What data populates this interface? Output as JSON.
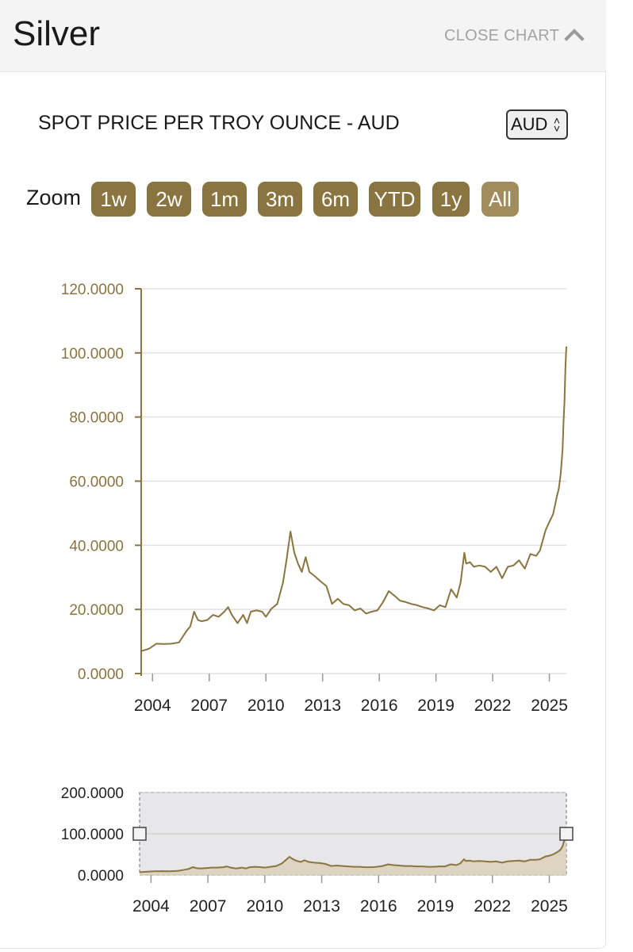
{
  "header": {
    "title": "Silver",
    "close_label": "CLOSE CHART"
  },
  "subtitle": "SPOT PRICE PER TROY OUNCE - AUD",
  "currency": {
    "selected": "AUD"
  },
  "zoom": {
    "label": "Zoom",
    "options": [
      "1w",
      "2w",
      "1m",
      "3m",
      "6m",
      "YTD",
      "1y",
      "All"
    ],
    "selected": "All"
  },
  "colors": {
    "line": "#8a7440",
    "axis_label": "#8a7440",
    "grid": "#e0e0e0"
  },
  "chart_data": {
    "type": "line",
    "title": "SPOT PRICE PER TROY OUNCE - AUD",
    "ylim": [
      0,
      120
    ],
    "yticks": [
      "0.0000",
      "20.0000",
      "40.0000",
      "60.0000",
      "80.0000",
      "100.0000",
      "120.0000"
    ],
    "xlim": [
      2003.4,
      2025.9
    ],
    "xticks": [
      "2004",
      "2007",
      "2010",
      "2013",
      "2016",
      "2019",
      "2022",
      "2025"
    ],
    "series": [
      {
        "name": "Silver AUD",
        "x": [
          2003.4,
          2003.8,
          2004.2,
          2004.6,
          2005.0,
          2005.4,
          2005.8,
          2006.0,
          2006.2,
          2006.4,
          2006.6,
          2006.9,
          2007.2,
          2007.5,
          2007.8,
          2008.0,
          2008.2,
          2008.5,
          2008.8,
          2009.0,
          2009.2,
          2009.5,
          2009.8,
          2010.0,
          2010.3,
          2010.6,
          2010.9,
          2011.1,
          2011.3,
          2011.5,
          2011.7,
          2011.9,
          2012.1,
          2012.3,
          2012.6,
          2012.9,
          2013.2,
          2013.5,
          2013.8,
          2014.1,
          2014.4,
          2014.7,
          2015.0,
          2015.3,
          2015.6,
          2015.9,
          2016.2,
          2016.5,
          2016.8,
          2017.1,
          2017.4,
          2017.7,
          2018.0,
          2018.3,
          2018.6,
          2018.9,
          2019.2,
          2019.5,
          2019.8,
          2020.1,
          2020.3,
          2020.5,
          2020.6,
          2020.8,
          2021.0,
          2021.3,
          2021.6,
          2021.9,
          2022.2,
          2022.5,
          2022.8,
          2023.1,
          2023.4,
          2023.7,
          2024.0,
          2024.3,
          2024.5,
          2024.8,
          2025.0,
          2025.2,
          2025.4,
          2025.5,
          2025.6,
          2025.7,
          2025.75,
          2025.8,
          2025.85,
          2025.9
        ],
        "values": [
          7,
          8,
          9,
          9.5,
          9,
          10,
          13,
          15,
          19,
          17,
          16,
          17,
          18,
          18,
          19,
          21,
          18,
          16,
          18,
          16,
          19,
          20,
          19,
          18,
          20,
          22,
          28,
          36,
          44,
          38,
          34,
          32,
          36,
          32,
          30,
          29,
          27,
          22,
          23,
          22,
          21,
          20,
          20,
          19,
          19,
          20,
          22,
          26,
          24,
          23,
          22,
          22,
          21,
          21,
          20,
          20,
          21,
          21,
          26,
          24,
          28,
          38,
          34,
          35,
          33,
          34,
          33,
          32,
          33,
          30,
          33,
          34,
          35,
          33,
          37,
          37,
          38,
          45,
          47,
          50,
          55,
          58,
          62,
          70,
          78,
          85,
          95,
          102
        ]
      }
    ]
  },
  "navigator": {
    "yticks": [
      "0.0000",
      "100.0000",
      "200.0000"
    ],
    "xticks": [
      "2004",
      "2007",
      "2010",
      "2013",
      "2016",
      "2019",
      "2022",
      "2025"
    ],
    "ylim": [
      0,
      200
    ]
  }
}
